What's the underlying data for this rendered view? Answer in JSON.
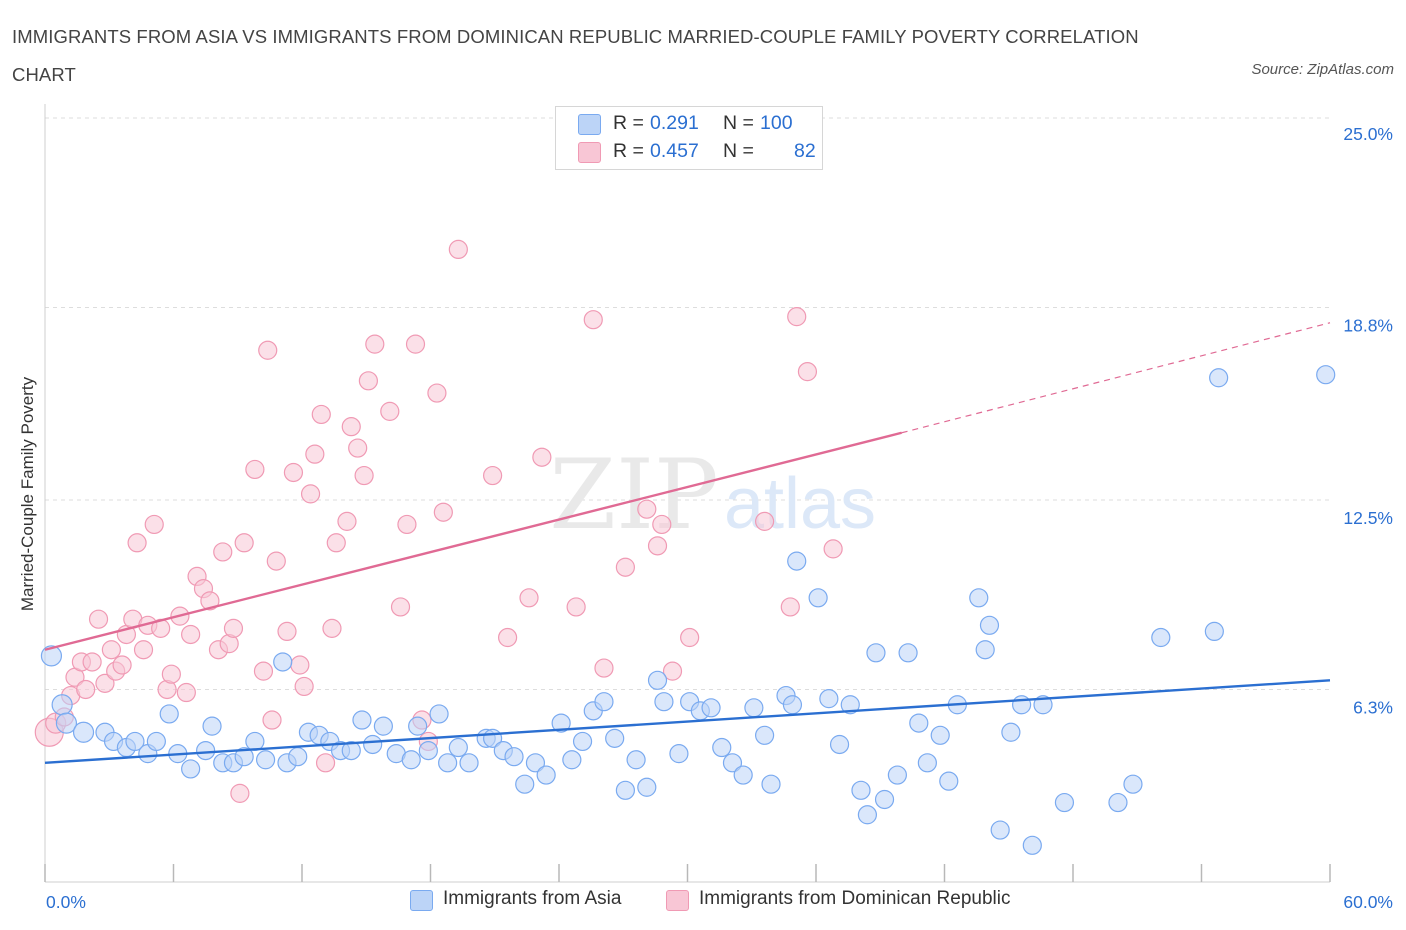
{
  "title": "IMMIGRANTS FROM ASIA VS IMMIGRANTS FROM DOMINICAN REPUBLIC MARRIED-COUPLE FAMILY POVERTY CORRELATION CHART",
  "source": "Source: ZipAtlas.com",
  "watermark": {
    "part1": "ZIP",
    "part2": "atlas"
  },
  "colors": {
    "asia": "#7aaaf0",
    "asia_fill": "#bcd4f7",
    "asia_line": "#2b6fd1",
    "dom": "#f09ab4",
    "dom_fill": "#f8c6d5",
    "dom_line": "#e06a94",
    "axis_label": "#2b6fd1",
    "grid": "#dddddd"
  },
  "legend_top": {
    "rows": [
      {
        "r_key": "R =",
        "r_val": "0.291",
        "n_key": "N =",
        "n_val": "100"
      },
      {
        "r_key": "R =",
        "r_val": "0.457",
        "n_key": "N =",
        "n_val": "82"
      }
    ]
  },
  "legend_bottom": [
    {
      "label": "Immigrants from Asia"
    },
    {
      "label": "Immigrants from Dominican Republic"
    }
  ],
  "chart_data": {
    "type": "scatter",
    "title": "IMMIGRANTS FROM ASIA VS IMMIGRANTS FROM DOMINICAN REPUBLIC MARRIED-COUPLE FAMILY POVERTY CORRELATION CHART",
    "xlabel": "",
    "ylabel": "Married-Couple Family Poverty",
    "xlim": [
      0,
      60
    ],
    "ylim": [
      0,
      25
    ],
    "x_tick_labels": [
      "0.0%",
      "60.0%"
    ],
    "y_ticks": [
      6.3,
      12.5,
      18.8,
      25.0
    ],
    "y_tick_labels": [
      "6.3%",
      "12.5%",
      "18.8%",
      "25.0%"
    ],
    "grid": true,
    "series": [
      {
        "name": "Immigrants from Asia",
        "R": 0.291,
        "N": 100,
        "trend": {
          "x0": 0,
          "y0": 3.9,
          "x1": 60,
          "y1": 6.6
        },
        "points": [
          [
            0.3,
            7.4
          ],
          [
            0.8,
            5.8
          ],
          [
            1.0,
            5.2
          ],
          [
            1.8,
            4.9
          ],
          [
            2.8,
            4.9
          ],
          [
            3.2,
            4.6
          ],
          [
            3.8,
            4.4
          ],
          [
            4.2,
            4.6
          ],
          [
            4.8,
            4.2
          ],
          [
            5.2,
            4.6
          ],
          [
            5.8,
            5.5
          ],
          [
            6.2,
            4.2
          ],
          [
            6.8,
            3.7
          ],
          [
            7.5,
            4.3
          ],
          [
            7.8,
            5.1
          ],
          [
            8.3,
            3.9
          ],
          [
            8.8,
            3.9
          ],
          [
            9.3,
            4.1
          ],
          [
            9.8,
            4.6
          ],
          [
            10.3,
            4.0
          ],
          [
            11.1,
            7.2
          ],
          [
            11.3,
            3.9
          ],
          [
            11.8,
            4.1
          ],
          [
            12.3,
            4.9
          ],
          [
            12.8,
            4.8
          ],
          [
            13.3,
            4.6
          ],
          [
            13.8,
            4.3
          ],
          [
            14.3,
            4.3
          ],
          [
            14.8,
            5.3
          ],
          [
            15.3,
            4.5
          ],
          [
            15.8,
            5.1
          ],
          [
            16.4,
            4.2
          ],
          [
            17.1,
            4.0
          ],
          [
            17.4,
            5.1
          ],
          [
            17.9,
            4.3
          ],
          [
            18.4,
            5.5
          ],
          [
            18.8,
            3.9
          ],
          [
            19.3,
            4.4
          ],
          [
            19.8,
            3.9
          ],
          [
            20.6,
            4.7
          ],
          [
            20.9,
            4.7
          ],
          [
            21.4,
            4.3
          ],
          [
            21.9,
            4.1
          ],
          [
            22.4,
            3.2
          ],
          [
            22.9,
            3.9
          ],
          [
            23.4,
            3.5
          ],
          [
            24.1,
            5.2
          ],
          [
            24.6,
            4.0
          ],
          [
            25.1,
            4.6
          ],
          [
            25.6,
            5.6
          ],
          [
            26.1,
            5.9
          ],
          [
            26.6,
            4.7
          ],
          [
            27.1,
            3.0
          ],
          [
            27.6,
            4.0
          ],
          [
            28.1,
            3.1
          ],
          [
            28.6,
            6.6
          ],
          [
            28.9,
            5.9
          ],
          [
            29.6,
            4.2
          ],
          [
            30.1,
            5.9
          ],
          [
            30.6,
            5.6
          ],
          [
            31.1,
            5.7
          ],
          [
            31.6,
            4.4
          ],
          [
            32.1,
            3.9
          ],
          [
            32.6,
            3.5
          ],
          [
            33.1,
            5.7
          ],
          [
            33.6,
            4.8
          ],
          [
            33.9,
            3.2
          ],
          [
            34.6,
            6.1
          ],
          [
            34.9,
            5.8
          ],
          [
            35.1,
            10.5
          ],
          [
            36.1,
            9.3
          ],
          [
            36.6,
            6.0
          ],
          [
            37.1,
            4.5
          ],
          [
            37.6,
            5.8
          ],
          [
            38.1,
            3.0
          ],
          [
            38.4,
            2.2
          ],
          [
            38.8,
            7.5
          ],
          [
            39.2,
            2.7
          ],
          [
            39.8,
            3.5
          ],
          [
            40.3,
            7.5
          ],
          [
            40.8,
            5.2
          ],
          [
            41.2,
            3.9
          ],
          [
            41.8,
            4.8
          ],
          [
            42.2,
            3.3
          ],
          [
            42.6,
            5.8
          ],
          [
            43.6,
            9.3
          ],
          [
            43.9,
            7.6
          ],
          [
            44.1,
            8.4
          ],
          [
            44.6,
            1.7
          ],
          [
            45.1,
            4.9
          ],
          [
            45.6,
            5.8
          ],
          [
            46.1,
            1.2
          ],
          [
            46.6,
            5.8
          ],
          [
            47.6,
            2.6
          ],
          [
            50.1,
            2.6
          ],
          [
            50.8,
            3.2
          ],
          [
            52.1,
            8.0
          ],
          [
            54.6,
            8.2
          ],
          [
            54.8,
            16.5
          ],
          [
            59.8,
            16.6
          ]
        ],
        "point_sizes": [
          10,
          10,
          10,
          10,
          9,
          9,
          9,
          9,
          9,
          9,
          9,
          9,
          9,
          9,
          9,
          9,
          9,
          9,
          9,
          9,
          9,
          9,
          9,
          9,
          9,
          9,
          9,
          9,
          9,
          9,
          9,
          9,
          9,
          9,
          9,
          9,
          9,
          9,
          9,
          9,
          9,
          9,
          9,
          9,
          9,
          9,
          9,
          9,
          9,
          9,
          9,
          9,
          9,
          9,
          9,
          9,
          9,
          9,
          9,
          9,
          9,
          9,
          9,
          9,
          9,
          9,
          9,
          9,
          9,
          9,
          9,
          9,
          9,
          9,
          9,
          9,
          9,
          9,
          9,
          9,
          9,
          9,
          9,
          9,
          9,
          9,
          9,
          9,
          9,
          9,
          9,
          9,
          9,
          9,
          9,
          9,
          9,
          9,
          9,
          9
        ]
      },
      {
        "name": "Immigrants from Dominican Republic",
        "R": 0.457,
        "N": 82,
        "trend": {
          "x0": 0,
          "y0": 7.6,
          "x1": 40,
          "y1": 14.7,
          "dashed_to": {
            "x": 60,
            "y": 18.3
          }
        },
        "points": [
          [
            0.2,
            4.9
          ],
          [
            0.5,
            5.2
          ],
          [
            0.9,
            5.4
          ],
          [
            1.2,
            6.1
          ],
          [
            1.4,
            6.7
          ],
          [
            1.7,
            7.2
          ],
          [
            1.9,
            6.3
          ],
          [
            2.2,
            7.2
          ],
          [
            2.5,
            8.6
          ],
          [
            2.8,
            6.5
          ],
          [
            3.1,
            7.6
          ],
          [
            3.3,
            6.9
          ],
          [
            3.6,
            7.1
          ],
          [
            3.8,
            8.1
          ],
          [
            4.1,
            8.6
          ],
          [
            4.3,
            11.1
          ],
          [
            4.6,
            7.6
          ],
          [
            4.8,
            8.4
          ],
          [
            5.1,
            11.7
          ],
          [
            5.4,
            8.3
          ],
          [
            5.7,
            6.3
          ],
          [
            5.9,
            6.8
          ],
          [
            6.3,
            8.7
          ],
          [
            6.6,
            6.2
          ],
          [
            6.8,
            8.1
          ],
          [
            7.1,
            10.0
          ],
          [
            7.4,
            9.6
          ],
          [
            7.7,
            9.2
          ],
          [
            8.1,
            7.6
          ],
          [
            8.3,
            10.8
          ],
          [
            8.6,
            7.8
          ],
          [
            8.8,
            8.3
          ],
          [
            9.1,
            2.9
          ],
          [
            9.3,
            11.1
          ],
          [
            9.8,
            13.5
          ],
          [
            10.2,
            6.9
          ],
          [
            10.4,
            17.4
          ],
          [
            10.6,
            5.3
          ],
          [
            10.8,
            10.5
          ],
          [
            11.3,
            8.2
          ],
          [
            11.6,
            13.4
          ],
          [
            11.9,
            7.1
          ],
          [
            12.1,
            6.4
          ],
          [
            12.4,
            12.7
          ],
          [
            12.6,
            14.0
          ],
          [
            12.9,
            15.3
          ],
          [
            13.1,
            3.9
          ],
          [
            13.4,
            8.3
          ],
          [
            13.6,
            11.1
          ],
          [
            14.1,
            11.8
          ],
          [
            14.3,
            14.9
          ],
          [
            14.6,
            14.2
          ],
          [
            14.9,
            13.3
          ],
          [
            15.1,
            16.4
          ],
          [
            15.4,
            17.6
          ],
          [
            16.1,
            15.4
          ],
          [
            16.6,
            9.0
          ],
          [
            16.9,
            11.7
          ],
          [
            17.3,
            17.6
          ],
          [
            17.6,
            5.3
          ],
          [
            17.9,
            4.6
          ],
          [
            18.3,
            16.0
          ],
          [
            18.6,
            12.1
          ],
          [
            19.3,
            20.7
          ],
          [
            20.9,
            13.3
          ],
          [
            21.6,
            8.0
          ],
          [
            22.6,
            9.3
          ],
          [
            23.2,
            13.9
          ],
          [
            24.8,
            9.0
          ],
          [
            25.6,
            18.4
          ],
          [
            26.1,
            7.0
          ],
          [
            27.1,
            10.3
          ],
          [
            28.1,
            12.2
          ],
          [
            28.6,
            11.0
          ],
          [
            28.8,
            11.7
          ],
          [
            29.3,
            6.9
          ],
          [
            30.1,
            8.0
          ],
          [
            33.6,
            11.8
          ],
          [
            34.8,
            9.0
          ],
          [
            35.1,
            18.5
          ],
          [
            35.6,
            16.7
          ],
          [
            36.8,
            10.9
          ]
        ],
        "point_sizes": [
          14,
          10,
          9,
          9,
          9,
          9,
          9,
          9,
          9,
          9,
          9,
          9,
          9,
          9,
          9,
          9,
          9,
          9,
          9,
          9,
          9,
          9,
          9,
          9,
          9,
          9,
          9,
          9,
          9,
          9,
          9,
          9,
          9,
          9,
          9,
          9,
          9,
          9,
          9,
          9,
          9,
          9,
          9,
          9,
          9,
          9,
          9,
          9,
          9,
          9,
          9,
          9,
          9,
          9,
          9,
          9,
          9,
          9,
          9,
          9,
          9,
          9,
          9,
          9,
          9,
          9,
          9,
          9,
          9,
          9,
          9,
          9,
          9,
          9,
          9,
          9,
          9,
          9,
          9,
          9,
          9,
          9
        ]
      }
    ]
  }
}
